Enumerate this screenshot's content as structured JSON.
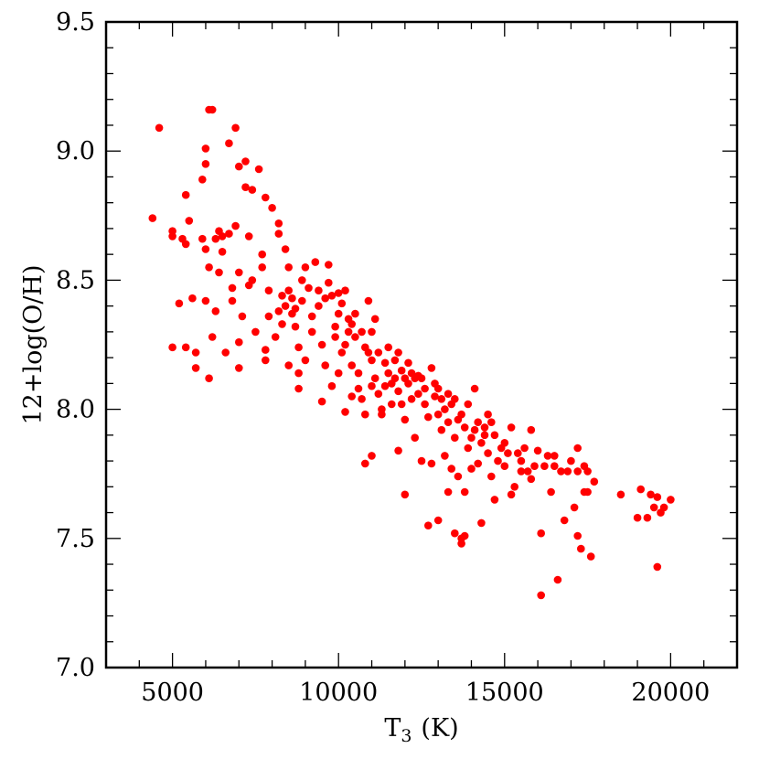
{
  "chart_data": {
    "type": "scatter",
    "title": "",
    "xlabel": "T",
    "xlabel_subscript": "3",
    "xlabel_unit": "(K)",
    "ylabel": "12+log(O/H)",
    "xlim": [
      3000,
      22000
    ],
    "ylim": [
      7.0,
      9.5
    ],
    "x_ticks": [
      5000,
      10000,
      15000,
      20000
    ],
    "x_tick_labels": [
      "5000",
      "10000",
      "15000",
      "20000"
    ],
    "y_ticks": [
      7.0,
      7.5,
      8.0,
      8.5,
      9.0,
      9.5
    ],
    "y_tick_labels": [
      "7.0",
      "7.5",
      "8.0",
      "8.5",
      "9.0",
      "9.5"
    ],
    "x_minor_step": 1000,
    "y_minor_step": 0.1,
    "grid": false,
    "marker_color": "#ff0000",
    "points": [
      [
        4400,
        8.74
      ],
      [
        4600,
        9.09
      ],
      [
        5000,
        8.69
      ],
      [
        5000,
        8.67
      ],
      [
        5000,
        8.24
      ],
      [
        5200,
        8.41
      ],
      [
        5300,
        8.66
      ],
      [
        5400,
        8.83
      ],
      [
        5400,
        8.64
      ],
      [
        5400,
        8.24
      ],
      [
        5500,
        8.73
      ],
      [
        5600,
        8.43
      ],
      [
        5700,
        8.16
      ],
      [
        5700,
        8.22
      ],
      [
        5900,
        8.66
      ],
      [
        6000,
        8.62
      ],
      [
        5900,
        8.89
      ],
      [
        6000,
        8.95
      ],
      [
        6000,
        8.42
      ],
      [
        6100,
        9.16
      ],
      [
        6200,
        9.16
      ],
      [
        6100,
        8.55
      ],
      [
        6100,
        8.12
      ],
      [
        6200,
        8.28
      ],
      [
        6000,
        9.01
      ],
      [
        6300,
        8.38
      ],
      [
        6300,
        8.66
      ],
      [
        6400,
        8.69
      ],
      [
        6400,
        8.53
      ],
      [
        6500,
        8.61
      ],
      [
        6500,
        8.67
      ],
      [
        6600,
        8.22
      ],
      [
        6700,
        8.68
      ],
      [
        6700,
        9.03
      ],
      [
        6800,
        8.42
      ],
      [
        6800,
        8.47
      ],
      [
        6900,
        9.09
      ],
      [
        6900,
        8.71
      ],
      [
        7000,
        8.94
      ],
      [
        7000,
        8.53
      ],
      [
        7000,
        8.16
      ],
      [
        7000,
        8.26
      ],
      [
        7100,
        8.36
      ],
      [
        7200,
        8.96
      ],
      [
        7200,
        8.86
      ],
      [
        7300,
        8.48
      ],
      [
        7300,
        8.67
      ],
      [
        7400,
        8.85
      ],
      [
        7400,
        8.5
      ],
      [
        7500,
        8.3
      ],
      [
        7600,
        8.93
      ],
      [
        7700,
        8.6
      ],
      [
        7700,
        8.55
      ],
      [
        7800,
        8.82
      ],
      [
        7800,
        8.19
      ],
      [
        7800,
        8.23
      ],
      [
        7900,
        8.36
      ],
      [
        7900,
        8.46
      ],
      [
        8000,
        8.78
      ],
      [
        8100,
        8.28
      ],
      [
        8200,
        8.72
      ],
      [
        8200,
        8.68
      ],
      [
        8200,
        8.38
      ],
      [
        8300,
        8.33
      ],
      [
        8300,
        8.44
      ],
      [
        8400,
        8.62
      ],
      [
        8400,
        8.4
      ],
      [
        8500,
        8.55
      ],
      [
        8500,
        8.46
      ],
      [
        8500,
        8.17
      ],
      [
        8600,
        8.37
      ],
      [
        8600,
        8.43
      ],
      [
        8700,
        8.32
      ],
      [
        8700,
        8.39
      ],
      [
        8800,
        8.24
      ],
      [
        8800,
        8.08
      ],
      [
        8800,
        8.14
      ],
      [
        8900,
        8.5
      ],
      [
        8900,
        8.42
      ],
      [
        9000,
        8.55
      ],
      [
        9000,
        8.19
      ],
      [
        9100,
        8.47
      ],
      [
        9200,
        8.36
      ],
      [
        9200,
        8.3
      ],
      [
        9300,
        8.57
      ],
      [
        9400,
        8.46
      ],
      [
        9400,
        8.4
      ],
      [
        9500,
        8.25
      ],
      [
        9500,
        8.03
      ],
      [
        9600,
        8.17
      ],
      [
        9600,
        8.43
      ],
      [
        9700,
        8.56
      ],
      [
        9700,
        8.49
      ],
      [
        9800,
        8.44
      ],
      [
        9800,
        8.09
      ],
      [
        9900,
        8.32
      ],
      [
        9900,
        8.28
      ],
      [
        10000,
        8.45
      ],
      [
        10000,
        8.37
      ],
      [
        10000,
        8.14
      ],
      [
        10100,
        8.41
      ],
      [
        10100,
        8.22
      ],
      [
        10200,
        8.46
      ],
      [
        10200,
        8.25
      ],
      [
        10200,
        7.99
      ],
      [
        10300,
        8.3
      ],
      [
        10300,
        8.35
      ],
      [
        10400,
        8.33
      ],
      [
        10400,
        8.05
      ],
      [
        10400,
        8.17
      ],
      [
        10500,
        8.28
      ],
      [
        10500,
        8.37
      ],
      [
        10600,
        8.14
      ],
      [
        10600,
        8.08
      ],
      [
        10700,
        8.3
      ],
      [
        10700,
        8.04
      ],
      [
        10800,
        8.24
      ],
      [
        10800,
        7.98
      ],
      [
        10800,
        7.79
      ],
      [
        10900,
        8.42
      ],
      [
        10900,
        8.22
      ],
      [
        11000,
        8.3
      ],
      [
        11000,
        8.19
      ],
      [
        11000,
        8.09
      ],
      [
        11000,
        7.82
      ],
      [
        11100,
        8.35
      ],
      [
        11100,
        8.12
      ],
      [
        11200,
        8.06
      ],
      [
        11200,
        8.22
      ],
      [
        11300,
        8.0
      ],
      [
        11300,
        7.98
      ],
      [
        11400,
        8.09
      ],
      [
        11400,
        8.18
      ],
      [
        11500,
        8.14
      ],
      [
        11500,
        8.24
      ],
      [
        11600,
        8.1
      ],
      [
        11600,
        8.02
      ],
      [
        11700,
        8.19
      ],
      [
        11700,
        8.12
      ],
      [
        11800,
        7.84
      ],
      [
        11800,
        8.07
      ],
      [
        11800,
        8.22
      ],
      [
        11900,
        8.15
      ],
      [
        11900,
        8.02
      ],
      [
        12000,
        8.12
      ],
      [
        12000,
        7.67
      ],
      [
        12000,
        7.96
      ],
      [
        12100,
        8.1
      ],
      [
        12100,
        8.18
      ],
      [
        12200,
        8.04
      ],
      [
        12200,
        8.14
      ],
      [
        12300,
        8.12
      ],
      [
        12300,
        7.89
      ],
      [
        12400,
        8.06
      ],
      [
        12400,
        8.13
      ],
      [
        12500,
        7.8
      ],
      [
        12500,
        8.12
      ],
      [
        12600,
        8.08
      ],
      [
        12600,
        8.02
      ],
      [
        12700,
        7.55
      ],
      [
        12700,
        7.97
      ],
      [
        12800,
        8.16
      ],
      [
        12800,
        7.79
      ],
      [
        12900,
        8.05
      ],
      [
        12900,
        8.1
      ],
      [
        13000,
        7.57
      ],
      [
        13000,
        7.98
      ],
      [
        13000,
        8.08
      ],
      [
        13100,
        8.04
      ],
      [
        13100,
        7.92
      ],
      [
        13200,
        8.0
      ],
      [
        13200,
        7.82
      ],
      [
        13300,
        7.68
      ],
      [
        13300,
        8.06
      ],
      [
        13300,
        7.95
      ],
      [
        13400,
        8.02
      ],
      [
        13400,
        7.77
      ],
      [
        13500,
        7.52
      ],
      [
        13500,
        8.04
      ],
      [
        13500,
        7.89
      ],
      [
        13600,
        7.96
      ],
      [
        13600,
        7.74
      ],
      [
        13700,
        7.5
      ],
      [
        13700,
        7.48
      ],
      [
        13700,
        7.98
      ],
      [
        13800,
        7.68
      ],
      [
        13800,
        7.51
      ],
      [
        13800,
        7.93
      ],
      [
        13900,
        7.85
      ],
      [
        13900,
        8.02
      ],
      [
        14000,
        7.77
      ],
      [
        14000,
        7.89
      ],
      [
        14100,
        7.92
      ],
      [
        14100,
        8.08
      ],
      [
        14200,
        7.79
      ],
      [
        14200,
        7.95
      ],
      [
        14300,
        7.56
      ],
      [
        14300,
        7.87
      ],
      [
        14400,
        7.9
      ],
      [
        14400,
        7.93
      ],
      [
        14500,
        7.83
      ],
      [
        14500,
        7.98
      ],
      [
        14600,
        7.74
      ],
      [
        14600,
        7.95
      ],
      [
        14700,
        7.65
      ],
      [
        14700,
        7.9
      ],
      [
        14800,
        7.8
      ],
      [
        14900,
        7.85
      ],
      [
        15000,
        7.78
      ],
      [
        15000,
        7.87
      ],
      [
        15100,
        7.83
      ],
      [
        15200,
        7.67
      ],
      [
        15200,
        7.93
      ],
      [
        15300,
        7.7
      ],
      [
        15400,
        7.83
      ],
      [
        15500,
        7.76
      ],
      [
        15500,
        7.8
      ],
      [
        15600,
        7.85
      ],
      [
        15700,
        7.76
      ],
      [
        15800,
        7.73
      ],
      [
        15800,
        7.92
      ],
      [
        15900,
        7.78
      ],
      [
        16000,
        7.84
      ],
      [
        16100,
        7.52
      ],
      [
        16100,
        7.28
      ],
      [
        16200,
        7.78
      ],
      [
        16300,
        7.82
      ],
      [
        16400,
        7.68
      ],
      [
        16500,
        7.78
      ],
      [
        16500,
        7.82
      ],
      [
        16600,
        7.34
      ],
      [
        16700,
        7.76
      ],
      [
        16800,
        7.57
      ],
      [
        16900,
        7.76
      ],
      [
        17000,
        7.8
      ],
      [
        17100,
        7.62
      ],
      [
        17200,
        7.76
      ],
      [
        17200,
        7.85
      ],
      [
        17200,
        7.51
      ],
      [
        17300,
        7.46
      ],
      [
        17400,
        7.78
      ],
      [
        17400,
        7.68
      ],
      [
        17500,
        7.76
      ],
      [
        17500,
        7.68
      ],
      [
        17600,
        7.43
      ],
      [
        17700,
        7.72
      ],
      [
        18500,
        7.67
      ],
      [
        19000,
        7.58
      ],
      [
        19100,
        7.69
      ],
      [
        19300,
        7.58
      ],
      [
        19400,
        7.67
      ],
      [
        19500,
        7.62
      ],
      [
        19600,
        7.66
      ],
      [
        19600,
        7.39
      ],
      [
        19700,
        7.6
      ],
      [
        19800,
        7.62
      ],
      [
        20000,
        7.65
      ]
    ]
  }
}
